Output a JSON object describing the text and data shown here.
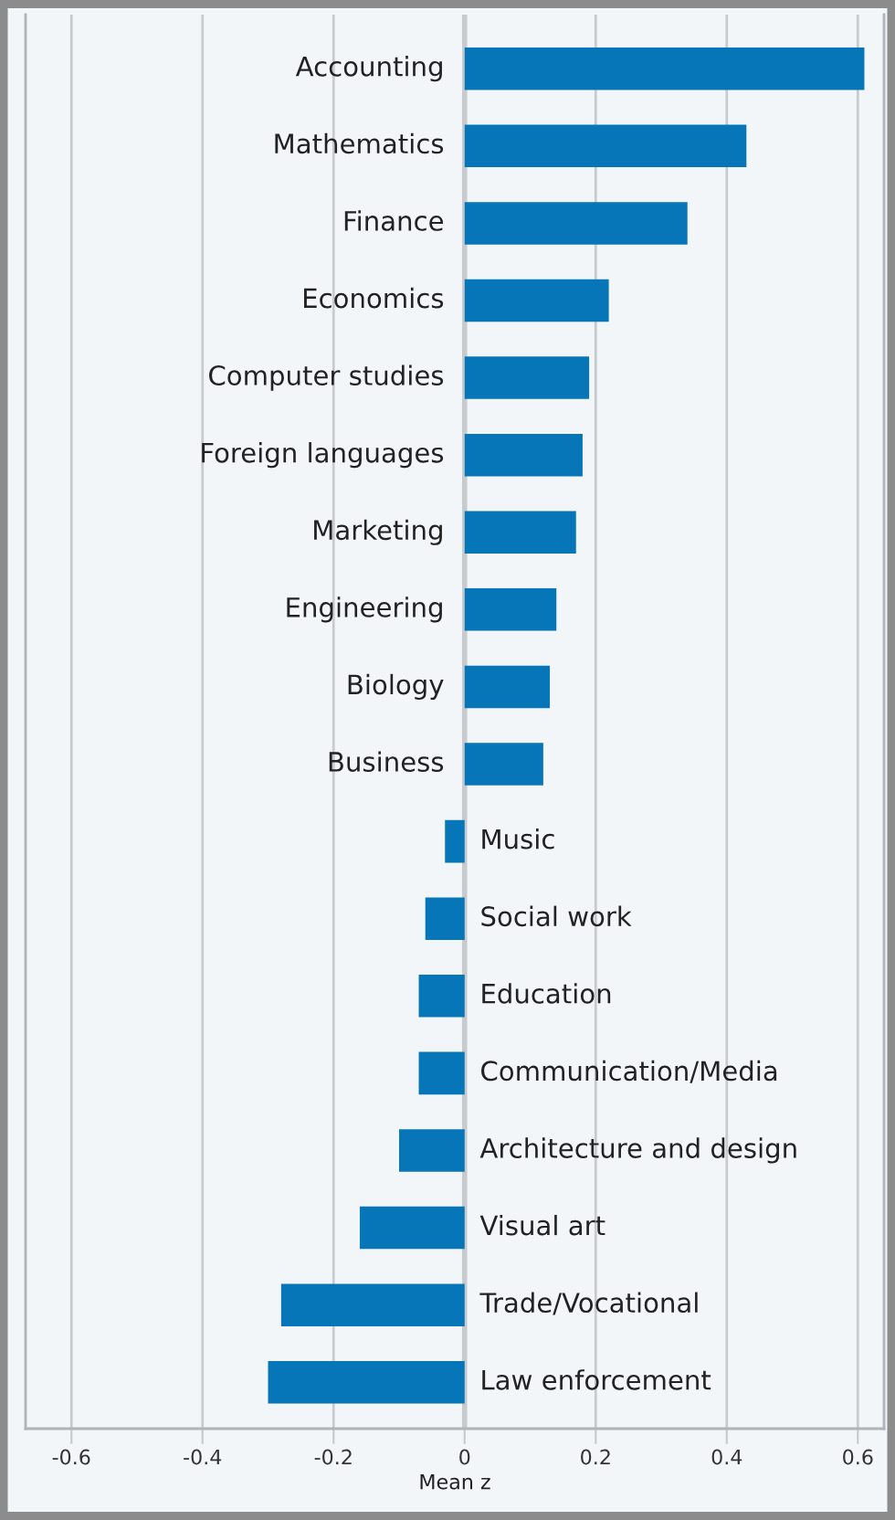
{
  "chart_data": {
    "type": "bar",
    "orientation": "horizontal",
    "xlabel": "Mean z",
    "categories": [
      "Accounting",
      "Mathematics",
      "Finance",
      "Economics",
      "Computer studies",
      "Foreign languages",
      "Marketing",
      "Engineering",
      "Biology",
      "Business",
      "Music",
      "Social work",
      "Education",
      "Communication/Media",
      "Architecture and design",
      "Visual art",
      "Trade/Vocational",
      "Law enforcement"
    ],
    "values": [
      0.61,
      0.43,
      0.34,
      0.22,
      0.19,
      0.18,
      0.17,
      0.14,
      0.13,
      0.12,
      -0.03,
      -0.06,
      -0.07,
      -0.07,
      -0.1,
      -0.16,
      -0.28,
      -0.3
    ],
    "color": "#0776b8",
    "xlim": [
      -0.67,
      0.64
    ],
    "xticks": [
      -0.6,
      -0.4,
      -0.2,
      0,
      0.2,
      0.4,
      0.6
    ],
    "grid": "x",
    "legend": false
  }
}
